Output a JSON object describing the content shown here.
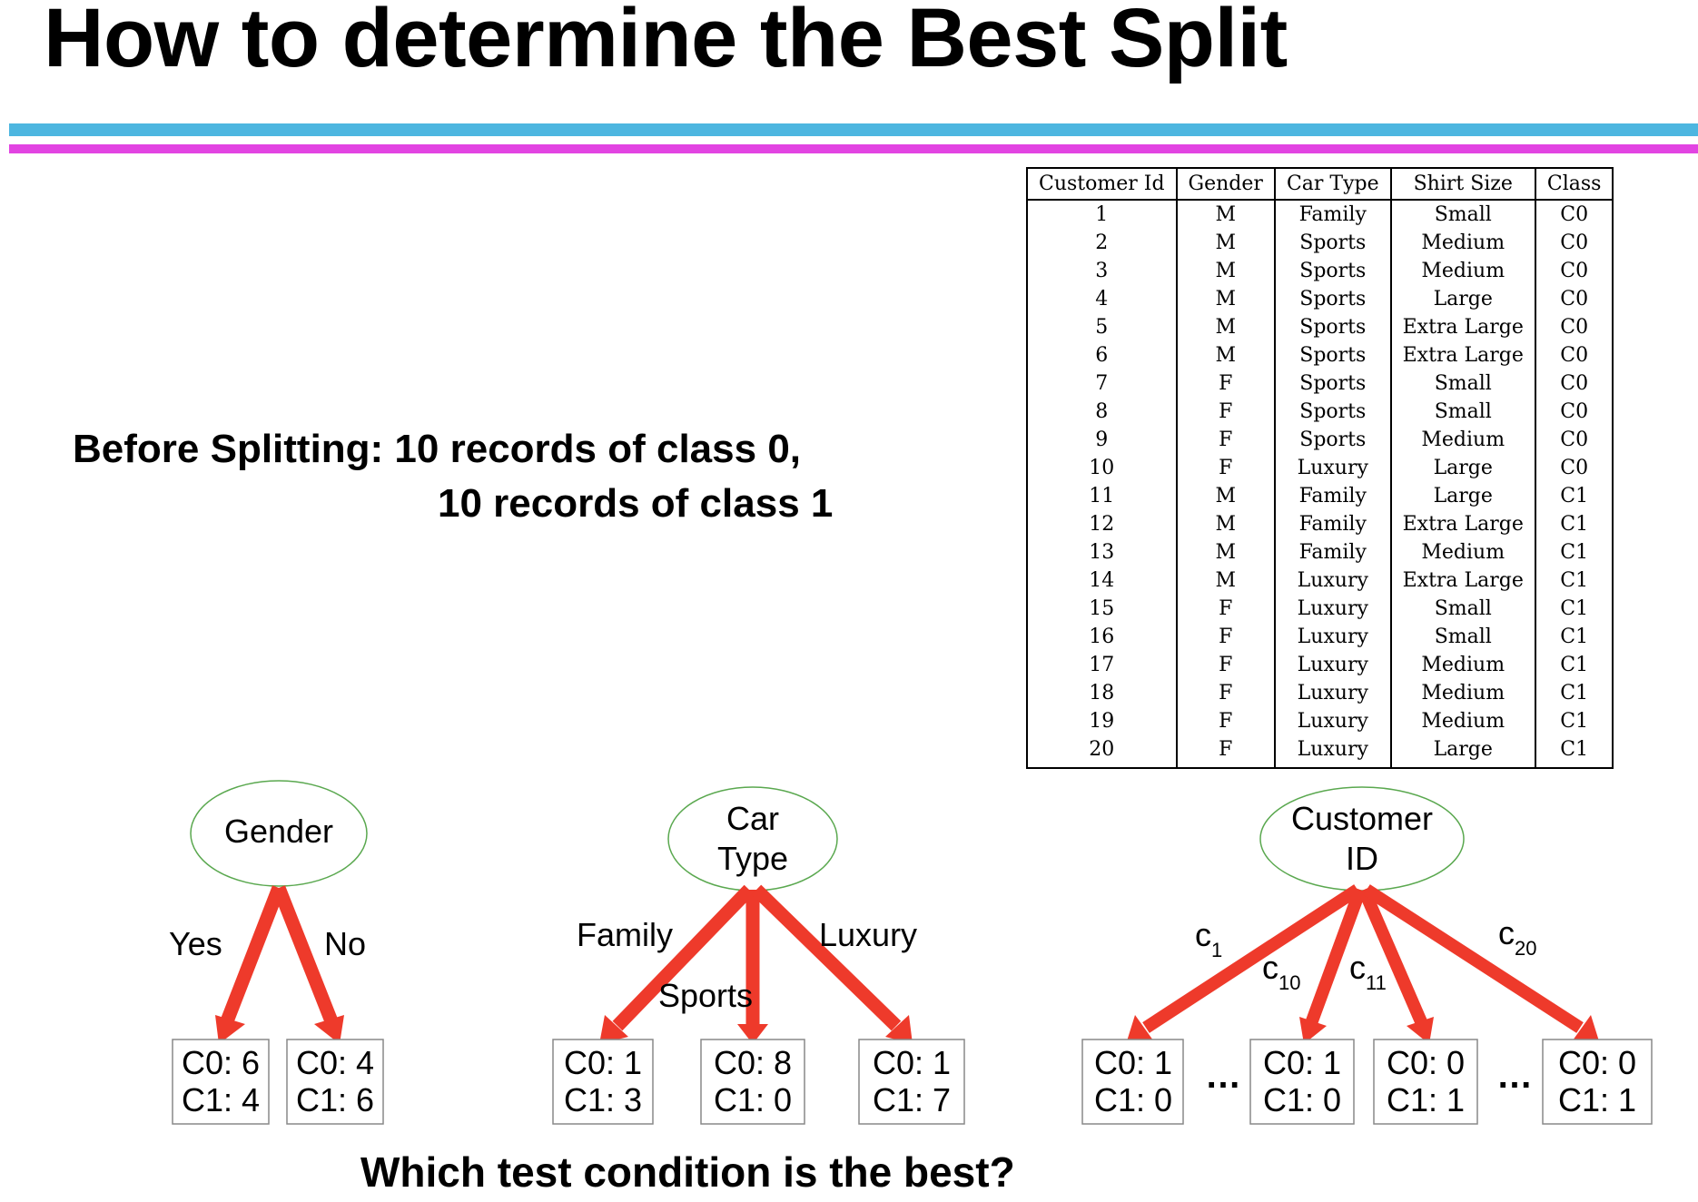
{
  "title": "How to determine the Best Split",
  "before": {
    "line1": "Before Splitting: 10 records of class 0,",
    "line2": "10 records of class 1"
  },
  "table": {
    "headers": [
      "Customer Id",
      "Gender",
      "Car Type",
      "Shirt Size",
      "Class"
    ],
    "rows": [
      [
        "1",
        "M",
        "Family",
        "Small",
        "C0"
      ],
      [
        "2",
        "M",
        "Sports",
        "Medium",
        "C0"
      ],
      [
        "3",
        "M",
        "Sports",
        "Medium",
        "C0"
      ],
      [
        "4",
        "M",
        "Sports",
        "Large",
        "C0"
      ],
      [
        "5",
        "M",
        "Sports",
        "Extra Large",
        "C0"
      ],
      [
        "6",
        "M",
        "Sports",
        "Extra Large",
        "C0"
      ],
      [
        "7",
        "F",
        "Sports",
        "Small",
        "C0"
      ],
      [
        "8",
        "F",
        "Sports",
        "Small",
        "C0"
      ],
      [
        "9",
        "F",
        "Sports",
        "Medium",
        "C0"
      ],
      [
        "10",
        "F",
        "Luxury",
        "Large",
        "C0"
      ],
      [
        "11",
        "M",
        "Family",
        "Large",
        "C1"
      ],
      [
        "12",
        "M",
        "Family",
        "Extra Large",
        "C1"
      ],
      [
        "13",
        "M",
        "Family",
        "Medium",
        "C1"
      ],
      [
        "14",
        "M",
        "Luxury",
        "Extra Large",
        "C1"
      ],
      [
        "15",
        "F",
        "Luxury",
        "Small",
        "C1"
      ],
      [
        "16",
        "F",
        "Luxury",
        "Small",
        "C1"
      ],
      [
        "17",
        "F",
        "Luxury",
        "Medium",
        "C1"
      ],
      [
        "18",
        "F",
        "Luxury",
        "Medium",
        "C1"
      ],
      [
        "19",
        "F",
        "Luxury",
        "Medium",
        "C1"
      ],
      [
        "20",
        "F",
        "Luxury",
        "Large",
        "C1"
      ]
    ]
  },
  "trees": {
    "gender": {
      "root": [
        "Gender"
      ],
      "branches": [
        "Yes",
        "No"
      ],
      "leaves": [
        [
          "C0: 6",
          "C1: 4"
        ],
        [
          "C0: 4",
          "C1: 6"
        ]
      ]
    },
    "car_type": {
      "root": [
        "Car",
        "Type"
      ],
      "branches": [
        "Family",
        "Sports",
        "Luxury"
      ],
      "leaves": [
        [
          "C0: 1",
          "C1: 3"
        ],
        [
          "C0: 8",
          "C1: 0"
        ],
        [
          "C0: 1",
          "C1: 7"
        ]
      ]
    },
    "customer_id": {
      "root": [
        "Customer",
        "ID"
      ],
      "branches": [
        {
          "base": "c",
          "sub": "1"
        },
        {
          "base": "c",
          "sub": "10"
        },
        {
          "base": "c",
          "sub": "11"
        },
        {
          "base": "c",
          "sub": "20"
        }
      ],
      "ellipsis": "…",
      "leaves": [
        [
          "C0: 1",
          "C1: 0"
        ],
        [
          "C0: 1",
          "C1: 0"
        ],
        [
          "C0: 0",
          "C1: 1"
        ],
        [
          "C0: 0",
          "C1: 1"
        ]
      ]
    }
  },
  "question": "Which test condition is the best?",
  "colors": {
    "arrow": "#ee3a2b",
    "rule_top": "#4db6e0",
    "rule_bottom": "#e244e2",
    "ellipse_stroke": "#5aa84f"
  }
}
